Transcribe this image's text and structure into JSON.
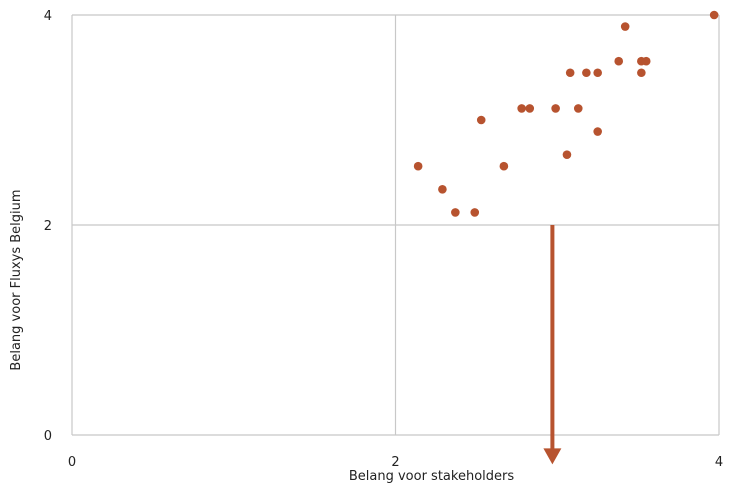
{
  "chart_data": {
    "type": "scatter",
    "xlabel": "Belang voor stakeholders",
    "ylabel": "Belang voor Fluxys Belgium",
    "xlim": [
      0,
      4
    ],
    "ylim": [
      0,
      4
    ],
    "x_ticks": [
      "0",
      "2",
      "4"
    ],
    "y_ticks": [
      "0",
      "2",
      "4"
    ],
    "grid": true,
    "point_color": "#b7532f",
    "arrow_color": "#b7532f",
    "arrow": {
      "x": 2.97,
      "y_from": 2.0,
      "y_to": -0.28
    },
    "points": [
      {
        "x": 2.14,
        "y": 2.56
      },
      {
        "x": 2.29,
        "y": 2.34
      },
      {
        "x": 2.37,
        "y": 2.12
      },
      {
        "x": 2.49,
        "y": 2.12
      },
      {
        "x": 2.53,
        "y": 3.0
      },
      {
        "x": 2.67,
        "y": 2.56
      },
      {
        "x": 2.78,
        "y": 3.11
      },
      {
        "x": 2.83,
        "y": 3.11
      },
      {
        "x": 2.99,
        "y": 3.11
      },
      {
        "x": 3.06,
        "y": 2.67
      },
      {
        "x": 3.08,
        "y": 3.45
      },
      {
        "x": 3.13,
        "y": 3.11
      },
      {
        "x": 3.18,
        "y": 3.45
      },
      {
        "x": 3.25,
        "y": 3.45
      },
      {
        "x": 3.25,
        "y": 2.89
      },
      {
        "x": 3.38,
        "y": 3.56
      },
      {
        "x": 3.42,
        "y": 3.89
      },
      {
        "x": 3.52,
        "y": 3.56
      },
      {
        "x": 3.52,
        "y": 3.45
      },
      {
        "x": 3.55,
        "y": 3.56
      },
      {
        "x": 3.97,
        "y": 4.0
      }
    ]
  }
}
